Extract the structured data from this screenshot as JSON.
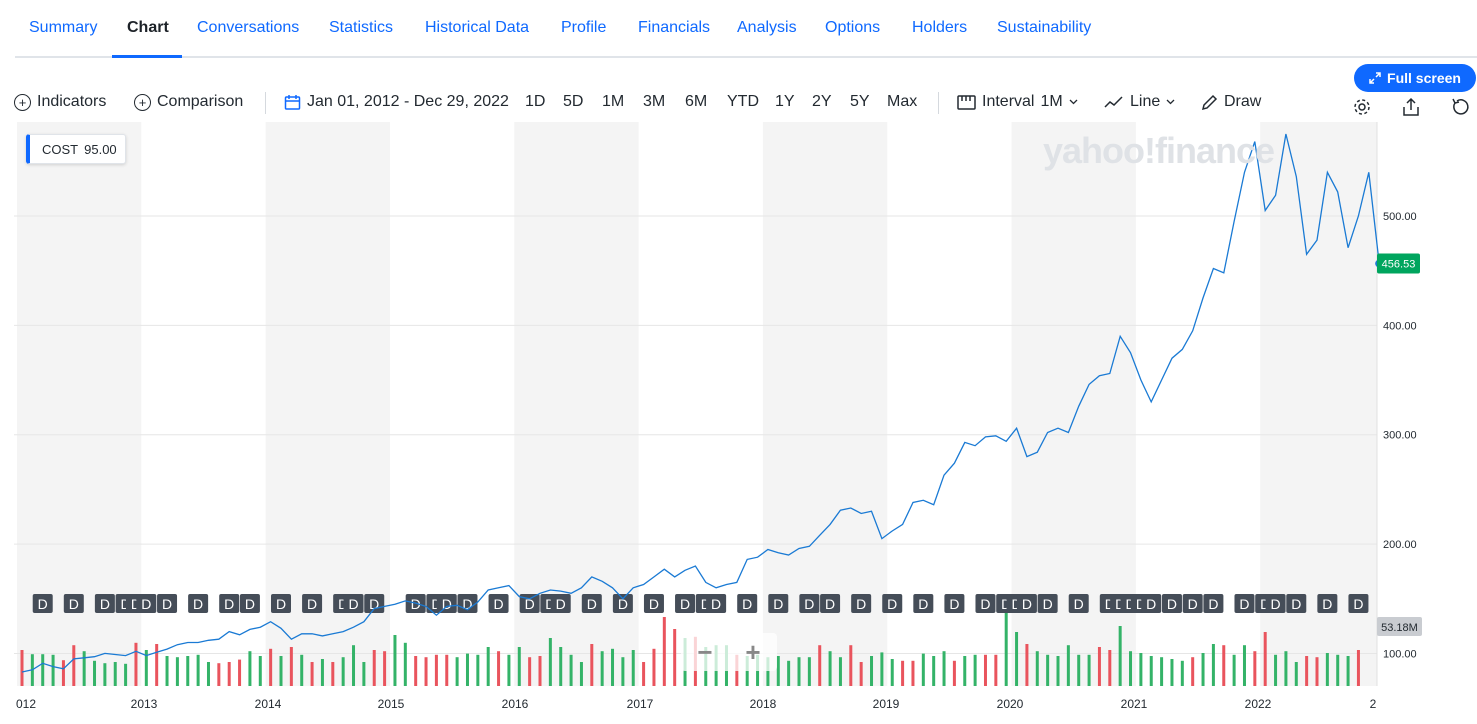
{
  "tabs": [
    {
      "label": "Summary",
      "active": false
    },
    {
      "label": "Chart",
      "active": true
    },
    {
      "label": "Conversations",
      "active": false
    },
    {
      "label": "Statistics",
      "active": false
    },
    {
      "label": "Historical Data",
      "active": false
    },
    {
      "label": "Profile",
      "active": false
    },
    {
      "label": "Financials",
      "active": false
    },
    {
      "label": "Analysis",
      "active": false
    },
    {
      "label": "Options",
      "active": false
    },
    {
      "label": "Holders",
      "active": false
    },
    {
      "label": "Sustainability",
      "active": false
    }
  ],
  "toolbar": {
    "fullscreen_label": "Full screen",
    "indicators_label": "Indicators",
    "comparison_label": "Comparison",
    "date_range": "Jan 01, 2012 - Dec 29, 2022",
    "ranges": [
      "1D",
      "5D",
      "1M",
      "3M",
      "6M",
      "YTD",
      "1Y",
      "2Y",
      "5Y",
      "Max"
    ],
    "interval_label": "Interval",
    "interval_value": "1M",
    "chart_type_label": "Line",
    "draw_label": "Draw",
    "icons": [
      "plus-circle-icon",
      "calendar-icon",
      "interval-icon",
      "line-chart-icon",
      "pencil-icon",
      "gear-icon",
      "share-icon",
      "reset-icon",
      "expand-icon"
    ]
  },
  "chart": {
    "symbol": "COST",
    "symbol_value": "95.00",
    "watermark": "yahoo!finance",
    "zoom_out": "−",
    "zoom_in": "+",
    "colors": {
      "line": "#1a7ad4",
      "up": "#34b368",
      "down": "#e9545d",
      "last_price": "#00a55e",
      "band": "#f4f4f4"
    }
  },
  "chart_data": {
    "type": "line",
    "x": [
      "2012-01",
      "2012-02",
      "2012-03",
      "2012-04",
      "2012-05",
      "2012-06",
      "2012-07",
      "2012-08",
      "2012-09",
      "2012-10",
      "2012-11",
      "2012-12",
      "2013-01",
      "2013-02",
      "2013-03",
      "2013-04",
      "2013-05",
      "2013-06",
      "2013-07",
      "2013-08",
      "2013-09",
      "2013-10",
      "2013-11",
      "2013-12",
      "2014-01",
      "2014-02",
      "2014-03",
      "2014-04",
      "2014-05",
      "2014-06",
      "2014-07",
      "2014-08",
      "2014-09",
      "2014-10",
      "2014-11",
      "2014-12",
      "2015-01",
      "2015-02",
      "2015-03",
      "2015-04",
      "2015-05",
      "2015-06",
      "2015-07",
      "2015-08",
      "2015-09",
      "2015-10",
      "2015-11",
      "2015-12",
      "2016-01",
      "2016-02",
      "2016-03",
      "2016-04",
      "2016-05",
      "2016-06",
      "2016-07",
      "2016-08",
      "2016-09",
      "2016-10",
      "2016-11",
      "2016-12",
      "2017-01",
      "2017-02",
      "2017-03",
      "2017-04",
      "2017-05",
      "2017-06",
      "2017-07",
      "2017-08",
      "2017-09",
      "2017-10",
      "2017-11",
      "2017-12",
      "2018-01",
      "2018-02",
      "2018-03",
      "2018-04",
      "2018-05",
      "2018-06",
      "2018-07",
      "2018-08",
      "2018-09",
      "2018-10",
      "2018-11",
      "2018-12",
      "2019-01",
      "2019-02",
      "2019-03",
      "2019-04",
      "2019-05",
      "2019-06",
      "2019-07",
      "2019-08",
      "2019-09",
      "2019-10",
      "2019-11",
      "2019-12",
      "2020-01",
      "2020-02",
      "2020-03",
      "2020-04",
      "2020-05",
      "2020-06",
      "2020-07",
      "2020-08",
      "2020-09",
      "2020-10",
      "2020-11",
      "2020-12",
      "2021-01",
      "2021-02",
      "2021-03",
      "2021-04",
      "2021-05",
      "2021-06",
      "2021-07",
      "2021-08",
      "2021-09",
      "2021-10",
      "2021-11",
      "2021-12",
      "2022-01",
      "2022-02",
      "2022-03",
      "2022-04",
      "2022-05",
      "2022-06",
      "2022-07",
      "2022-08",
      "2022-09",
      "2022-10",
      "2022-11",
      "2022-12"
    ],
    "series": [
      {
        "name": "COST",
        "values": [
          83,
          85,
          91,
          88,
          86,
          95,
          96,
          97,
          100,
          99,
          98,
          102,
          98,
          101,
          104,
          108,
          110,
          110,
          112,
          113,
          120,
          117,
          122,
          124,
          129,
          123,
          113,
          118,
          118,
          116,
          118,
          120,
          124,
          129,
          141,
          143,
          145,
          148,
          146,
          143,
          135,
          143,
          144,
          140,
          147,
          158,
          160,
          162,
          152,
          150,
          155,
          158,
          157,
          155,
          160,
          170,
          166,
          160,
          150,
          160,
          163,
          170,
          177,
          170,
          176,
          180,
          165,
          160,
          163,
          165,
          186,
          188,
          195,
          192,
          190,
          196,
          198,
          208,
          218,
          231,
          233,
          228,
          230,
          205,
          212,
          218,
          238,
          240,
          236,
          263,
          274,
          293,
          290,
          298,
          299,
          294,
          306,
          280,
          284,
          302,
          306,
          302,
          326,
          346,
          354,
          356,
          390,
          375,
          350,
          330,
          350,
          370,
          378,
          395,
          425,
          452,
          448,
          495,
          540,
          568,
          505,
          519,
          575,
          536,
          465,
          478,
          540,
          522,
          471,
          500,
          540,
          456.53
        ]
      }
    ],
    "volume": [
      {
        "m": 120,
        "up": false
      },
      {
        "m": 113,
        "up": true
      },
      {
        "m": 113,
        "up": true
      },
      {
        "m": 112,
        "up": true
      },
      {
        "m": 103,
        "up": false
      },
      {
        "m": 128,
        "up": false
      },
      {
        "m": 118,
        "up": true
      },
      {
        "m": 102,
        "up": true
      },
      {
        "m": 98,
        "up": true
      },
      {
        "m": 100,
        "up": true
      },
      {
        "m": 97,
        "up": true
      },
      {
        "m": 132,
        "up": false
      },
      {
        "m": 120,
        "up": true
      },
      {
        "m": 130,
        "up": false
      },
      {
        "m": 110,
        "up": true
      },
      {
        "m": 108,
        "up": true
      },
      {
        "m": 110,
        "up": true
      },
      {
        "m": 112,
        "up": true
      },
      {
        "m": 100,
        "up": true
      },
      {
        "m": 98,
        "up": false
      },
      {
        "m": 100,
        "up": false
      },
      {
        "m": 104,
        "up": false
      },
      {
        "m": 118,
        "up": true
      },
      {
        "m": 110,
        "up": true
      },
      {
        "m": 122,
        "up": false
      },
      {
        "m": 110,
        "up": true
      },
      {
        "m": 125,
        "up": false
      },
      {
        "m": 112,
        "up": true
      },
      {
        "m": 100,
        "up": false
      },
      {
        "m": 105,
        "up": true
      },
      {
        "m": 100,
        "up": false
      },
      {
        "m": 108,
        "up": true
      },
      {
        "m": 128,
        "up": true
      },
      {
        "m": 100,
        "up": true
      },
      {
        "m": 120,
        "up": false
      },
      {
        "m": 118,
        "up": false
      },
      {
        "m": 145,
        "up": true
      },
      {
        "m": 132,
        "up": true
      },
      {
        "m": 110,
        "up": false
      },
      {
        "m": 108,
        "up": false
      },
      {
        "m": 112,
        "up": false
      },
      {
        "m": 112,
        "up": false
      },
      {
        "m": 108,
        "up": true
      },
      {
        "m": 114,
        "up": true
      },
      {
        "m": 112,
        "up": true
      },
      {
        "m": 125,
        "up": true
      },
      {
        "m": 118,
        "up": false
      },
      {
        "m": 112,
        "up": true
      },
      {
        "m": 125,
        "up": true
      },
      {
        "m": 108,
        "up": false
      },
      {
        "m": 110,
        "up": false
      },
      {
        "m": 140,
        "up": true
      },
      {
        "m": 125,
        "up": true
      },
      {
        "m": 112,
        "up": true
      },
      {
        "m": 100,
        "up": true
      },
      {
        "m": 130,
        "up": false
      },
      {
        "m": 118,
        "up": true
      },
      {
        "m": 122,
        "up": true
      },
      {
        "m": 108,
        "up": true
      },
      {
        "m": 120,
        "up": true
      },
      {
        "m": 100,
        "up": false
      },
      {
        "m": 122,
        "up": false
      },
      {
        "m": 175,
        "up": false
      },
      {
        "m": 155,
        "up": false
      },
      {
        "m": 140,
        "up": true
      },
      {
        "m": 142,
        "up": false
      },
      {
        "m": 125,
        "up": true
      },
      {
        "m": 128,
        "up": true
      },
      {
        "m": 128,
        "up": true
      },
      {
        "m": 112,
        "up": false
      },
      {
        "m": 110,
        "up": true
      },
      {
        "m": 112,
        "up": true
      },
      {
        "m": 108,
        "up": true
      },
      {
        "m": 110,
        "up": true
      },
      {
        "m": 102,
        "up": true
      },
      {
        "m": 108,
        "up": true
      },
      {
        "m": 108,
        "up": true
      },
      {
        "m": 128,
        "up": false
      },
      {
        "m": 118,
        "up": true
      },
      {
        "m": 108,
        "up": true
      },
      {
        "m": 128,
        "up": false
      },
      {
        "m": 100,
        "up": false
      },
      {
        "m": 110,
        "up": true
      },
      {
        "m": 116,
        "up": true
      },
      {
        "m": 105,
        "up": true
      },
      {
        "m": 102,
        "up": false
      },
      {
        "m": 102,
        "up": false
      },
      {
        "m": 114,
        "up": true
      },
      {
        "m": 110,
        "up": true
      },
      {
        "m": 118,
        "up": true
      },
      {
        "m": 102,
        "up": false
      },
      {
        "m": 110,
        "up": true
      },
      {
        "m": 112,
        "up": true
      },
      {
        "m": 112,
        "up": false
      },
      {
        "m": 112,
        "up": false
      },
      {
        "m": 188,
        "up": true
      },
      {
        "m": 150,
        "up": true
      },
      {
        "m": 130,
        "up": false
      },
      {
        "m": 118,
        "up": true
      },
      {
        "m": 112,
        "up": true
      },
      {
        "m": 110,
        "up": true
      },
      {
        "m": 128,
        "up": true
      },
      {
        "m": 112,
        "up": true
      },
      {
        "m": 112,
        "up": true
      },
      {
        "m": 125,
        "up": false
      },
      {
        "m": 120,
        "up": false
      },
      {
        "m": 160,
        "up": true
      },
      {
        "m": 118,
        "up": true
      },
      {
        "m": 115,
        "up": true
      },
      {
        "m": 110,
        "up": true
      },
      {
        "m": 108,
        "up": true
      },
      {
        "m": 105,
        "up": true
      },
      {
        "m": 102,
        "up": true
      },
      {
        "m": 108,
        "up": false
      },
      {
        "m": 115,
        "up": true
      },
      {
        "m": 130,
        "up": true
      },
      {
        "m": 128,
        "up": false
      },
      {
        "m": 112,
        "up": true
      },
      {
        "m": 128,
        "up": true
      },
      {
        "m": 118,
        "up": false
      },
      {
        "m": 150,
        "up": false
      },
      {
        "m": 112,
        "up": true
      },
      {
        "m": 118,
        "up": true
      },
      {
        "m": 100,
        "up": true
      },
      {
        "m": 110,
        "up": false
      },
      {
        "m": 108,
        "up": false
      },
      {
        "m": 115,
        "up": true
      },
      {
        "m": 112,
        "up": true
      },
      {
        "m": 110,
        "up": true
      },
      {
        "m": 120,
        "up": false
      }
    ],
    "dividends": [
      "2012-03",
      "2012-06",
      "2012-09",
      "2012-11",
      "2012-12",
      "2013-01",
      "2013-03",
      "2013-06",
      "2013-09",
      "2013-11",
      "2014-02",
      "2014-05",
      "2014-08",
      "2014-09",
      "2014-11",
      "2015-03",
      "2015-05",
      "2015-06",
      "2015-08",
      "2015-11",
      "2016-02",
      "2016-04",
      "2016-05",
      "2016-08",
      "2016-11",
      "2017-02",
      "2017-05",
      "2017-07",
      "2017-08",
      "2017-11",
      "2018-02",
      "2018-05",
      "2018-07",
      "2018-10",
      "2019-01",
      "2019-04",
      "2019-07",
      "2019-10",
      "2019-12",
      "2020-01",
      "2020-02",
      "2020-04",
      "2020-07",
      "2020-10",
      "2020-11",
      "2020-12",
      "2021-01",
      "2021-02",
      "2021-04",
      "2021-06",
      "2021-08",
      "2021-11",
      "2022-01",
      "2022-02",
      "2022-04",
      "2022-07",
      "2022-10"
    ],
    "y_ticks": [
      "100.00",
      "200.00",
      "300.00",
      "400.00",
      "500.00"
    ],
    "x_ticks": [
      "012",
      "2013",
      "2014",
      "2015",
      "2016",
      "2017",
      "2018",
      "2019",
      "2020",
      "2021",
      "2022",
      "2"
    ],
    "ylim": [
      70,
      590
    ],
    "last_price": "456.53",
    "volume_label": "53.18M",
    "dividend_label": "D",
    "grid": true
  }
}
